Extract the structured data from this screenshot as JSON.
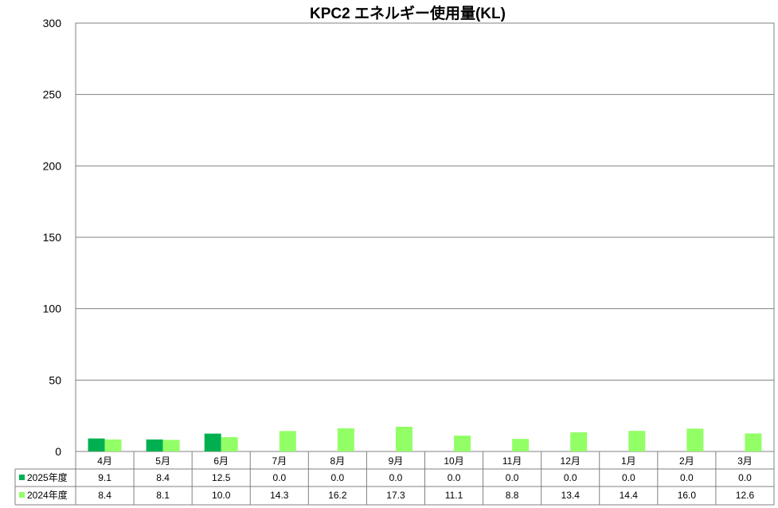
{
  "chart_data": {
    "type": "bar",
    "title": "KPC2 エネルギー使用量(KL)",
    "xlabel": "",
    "ylabel": "",
    "categories": [
      "4月",
      "5月",
      "6月",
      "7月",
      "8月",
      "9月",
      "10月",
      "11月",
      "12月",
      "1月",
      "2月",
      "3月"
    ],
    "ylim": [
      0,
      300
    ],
    "yticks": [
      0,
      50,
      100,
      150,
      200,
      250,
      300
    ],
    "grid": true,
    "legend": "data-table",
    "series": [
      {
        "name": "2025年度",
        "color": "#00b050",
        "values": [
          9.1,
          8.4,
          12.5,
          0.0,
          0.0,
          0.0,
          0.0,
          0.0,
          0.0,
          0.0,
          0.0,
          0.0
        ],
        "labels": [
          "9.1",
          "8.4",
          "12.5",
          "0.0",
          "0.0",
          "0.0",
          "0.0",
          "0.0",
          "0.0",
          "0.0",
          "0.0",
          "0.0"
        ]
      },
      {
        "name": "2024年度",
        "color": "#92ff66",
        "values": [
          8.4,
          8.1,
          10.0,
          14.3,
          16.2,
          17.3,
          11.1,
          8.8,
          13.4,
          14.4,
          16.0,
          12.6
        ],
        "labels": [
          "8.4",
          "8.1",
          "10.0",
          "14.3",
          "16.2",
          "17.3",
          "11.1",
          "8.8",
          "13.4",
          "14.4",
          "16.0",
          "12.6"
        ]
      }
    ]
  }
}
